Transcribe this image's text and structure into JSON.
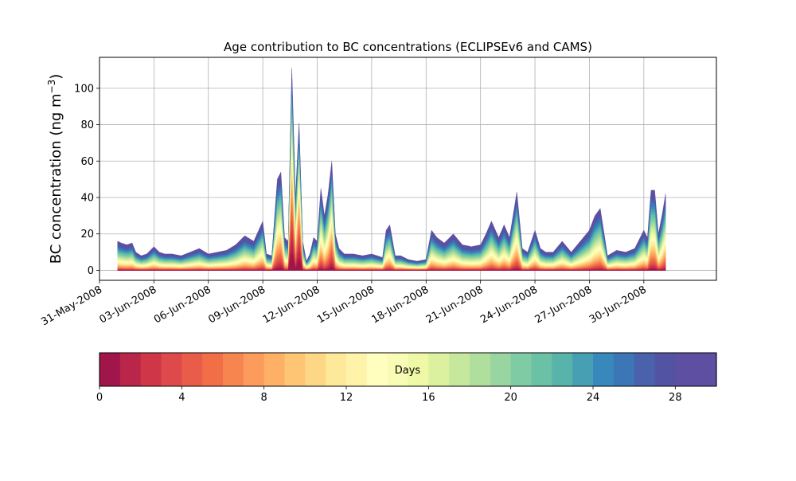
{
  "chart_data": {
    "type": "area",
    "title": "Age contribution to BC concentrations (ECLIPSEv6 and CAMS)",
    "ylabel_main": "BC concentration (ng m",
    "ylabel_exp": "−3",
    "ylabel_close": ")",
    "xlabel": "",
    "x_range": [
      "2008-05-31T00",
      "2008-07-04T00"
    ],
    "ylim": [
      0,
      120
    ],
    "grid": true,
    "yticks": [
      0,
      20,
      40,
      60,
      80,
      100
    ],
    "xticks": [
      "31-May-2008",
      "03-Jun-2008",
      "06-Jun-2008",
      "09-Jun-2008",
      "12-Jun-2008",
      "15-Jun-2008",
      "18-Jun-2008",
      "21-Jun-2008",
      "24-Jun-2008",
      "27-Jun-2008",
      "30-Jun-2008"
    ],
    "xtick_days": [
      0,
      3,
      6,
      9,
      12,
      15,
      18,
      21,
      24,
      27,
      30
    ],
    "total_series": {
      "name": "",
      "x_days": [
        1.0,
        1.2,
        1.5,
        1.8,
        2.0,
        2.3,
        2.6,
        3.0,
        3.3,
        3.6,
        4.0,
        4.5,
        5.0,
        5.5,
        6.0,
        6.5,
        7.0,
        7.5,
        8.0,
        8.5,
        9.0,
        9.2,
        9.5,
        9.8,
        10.0,
        10.2,
        10.4,
        10.6,
        10.8,
        11.0,
        11.2,
        11.4,
        11.6,
        11.8,
        12.0,
        12.2,
        12.4,
        12.6,
        12.8,
        13.0,
        13.2,
        13.5,
        14.0,
        14.5,
        15.0,
        15.3,
        15.6,
        15.8,
        16.0,
        16.3,
        16.6,
        17.0,
        17.5,
        18.0,
        18.3,
        18.6,
        19.0,
        19.5,
        20.0,
        20.5,
        21.0,
        21.3,
        21.6,
        22.0,
        22.3,
        22.6,
        23.0,
        23.3,
        23.6,
        24.0,
        24.3,
        24.6,
        25.0,
        25.5,
        26.0,
        26.5,
        27.0,
        27.3,
        27.6,
        28.0,
        28.5,
        29.0,
        29.5,
        30.0,
        30.2,
        30.4,
        30.6,
        30.8,
        31.0,
        31.2
      ],
      "values": [
        16,
        15,
        14,
        15,
        10,
        8,
        9,
        13,
        10,
        9,
        9,
        8,
        10,
        12,
        9,
        10,
        11,
        14,
        19,
        16,
        27,
        9,
        8,
        50,
        54,
        18,
        16,
        111,
        40,
        81,
        16,
        5,
        9,
        18,
        16,
        45,
        30,
        42,
        60,
        20,
        12,
        9,
        9,
        8,
        9,
        8,
        7,
        22,
        25,
        8,
        8,
        6,
        5,
        6,
        22,
        18,
        15,
        20,
        14,
        13,
        14,
        20,
        27,
        18,
        25,
        18,
        43,
        12,
        10,
        22,
        12,
        10,
        10,
        16,
        10,
        16,
        22,
        30,
        34,
        8,
        11,
        10,
        12,
        22,
        18,
        44,
        44,
        20,
        30,
        42
      ]
    },
    "age_bands": 30,
    "colorbar": {
      "label": "Days",
      "range": [
        0,
        30
      ],
      "ticks": [
        "0",
        "4",
        "8",
        "12",
        "16",
        "20",
        "24",
        "28"
      ],
      "tick_values": [
        0,
        4,
        8,
        12,
        16,
        20,
        24,
        28
      ],
      "colors": [
        "#a0154a",
        "#b92649",
        "#cf3748",
        "#de4a4b",
        "#e85c49",
        "#f16e47",
        "#f7854f",
        "#fb9b5c",
        "#fdb066",
        "#fdc574",
        "#fed786",
        "#fee899",
        "#fff3aa",
        "#fffebe",
        "#f8fcb4",
        "#eef8a6",
        "#dcf1a0",
        "#c6e89d",
        "#b0df9d",
        "#98d5a0",
        "#7fcba3",
        "#6bc1a6",
        "#58b4aa",
        "#469fb3",
        "#3888bb",
        "#3d76b6",
        "#4962ab",
        "#5254a3",
        "#5e4fa2",
        "#5e4fa2"
      ]
    }
  }
}
